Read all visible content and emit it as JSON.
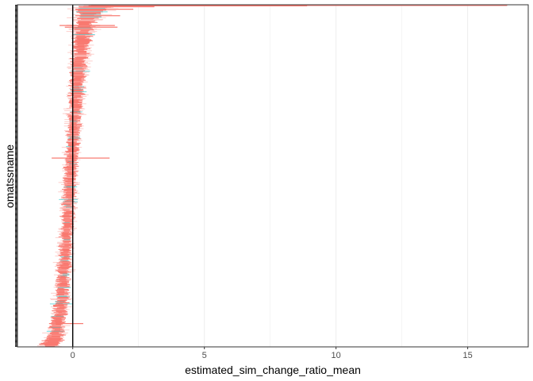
{
  "chart_data": {
    "type": "bar",
    "orientation": "horizontal",
    "mark": "interval",
    "xlabel": "estimated_sim_change_ratio_mean",
    "ylabel": "omatssname",
    "xlim": [
      -2.1,
      17.3
    ],
    "x_ticks": [
      0,
      5,
      10,
      15
    ],
    "x_tick_labels": [
      "0",
      "5",
      "10",
      "15"
    ],
    "y_tick_labels": "unreadable",
    "grid": "vertical",
    "reference_line_x": 0,
    "n_categories": 800,
    "colors": {
      "primary_series": "#F8766D",
      "secondary_series": "#00BFC4",
      "reference_line": "#000000",
      "grid": "#ebebeb",
      "axis": "#333333"
    },
    "series": [
      {
        "color": "#F8766D",
        "profile_x": [
          0.0,
          0.02,
          0.05,
          0.1,
          0.2,
          0.35,
          0.5,
          0.65,
          0.8,
          0.9,
          0.97,
          1.0
        ],
        "center_profile": [
          0.9,
          0.7,
          0.5,
          0.35,
          0.2,
          0.05,
          -0.1,
          -0.22,
          -0.35,
          -0.48,
          -0.65,
          -0.9
        ],
        "halfwidth_profile": [
          0.5,
          0.4,
          0.3,
          0.25,
          0.2,
          0.18,
          0.17,
          0.17,
          0.18,
          0.2,
          0.25,
          0.3
        ]
      },
      {
        "color": "#00BFC4",
        "density": 0.05
      }
    ],
    "outliers": [
      {
        "rank": 1,
        "low": 0.7,
        "high": 16.5
      },
      {
        "rank": 2,
        "low": 0.6,
        "high": 8.9
      },
      {
        "rank": 4,
        "low": 0.4,
        "high": 3.1
      },
      {
        "rank": 10,
        "low": 0.1,
        "high": 2.3
      },
      {
        "rank": 25,
        "low": 0.1,
        "high": 1.8
      },
      {
        "rank": 48,
        "low": -0.5,
        "high": 1.6
      },
      {
        "rank": 52,
        "low": -0.3,
        "high": 1.7
      },
      {
        "rank": 358,
        "low": -0.8,
        "high": 1.4
      },
      {
        "rank": 745,
        "low": -0.9,
        "high": 0.4
      }
    ]
  }
}
